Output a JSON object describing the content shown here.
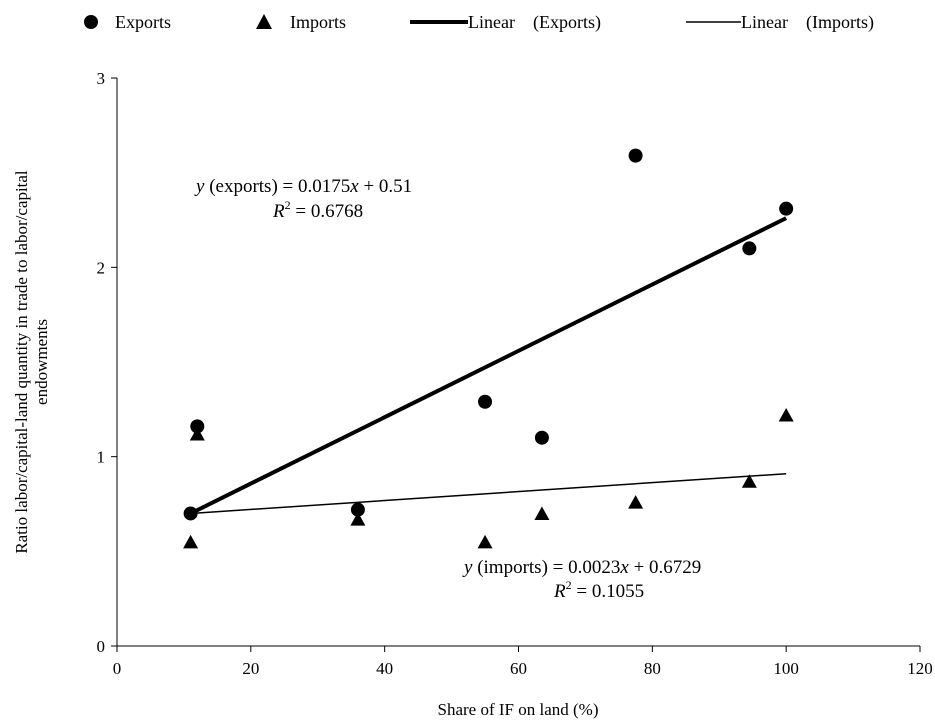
{
  "chart_data": {
    "type": "scatter",
    "xlabel": "Share of IF on land (%)",
    "ylabel_lines": [
      "Ratio labor/capital-land quantity in trade to labor/capital",
      "endowments"
    ],
    "xlim": [
      0,
      120
    ],
    "ylim": [
      0,
      3
    ],
    "x_ticks": [
      0,
      20,
      40,
      60,
      80,
      100,
      120
    ],
    "y_ticks": [
      0,
      1,
      2,
      3
    ],
    "grid": false,
    "legend_position": "top",
    "legend": [
      {
        "label": "Exports",
        "marker": "circle"
      },
      {
        "label": "Imports",
        "marker": "triangle"
      },
      {
        "label": "Linear    (Exports)",
        "marker": "thick-line"
      },
      {
        "label": "Linear    (Imports)",
        "marker": "thin-line"
      }
    ],
    "series": [
      {
        "name": "Exports",
        "marker": "circle",
        "points": [
          {
            "x": 11,
            "y": 0.7
          },
          {
            "x": 12,
            "y": 1.16
          },
          {
            "x": 36,
            "y": 0.72
          },
          {
            "x": 55,
            "y": 1.29
          },
          {
            "x": 63.5,
            "y": 1.1
          },
          {
            "x": 77.5,
            "y": 2.59
          },
          {
            "x": 94.5,
            "y": 2.1
          },
          {
            "x": 100,
            "y": 2.31
          }
        ]
      },
      {
        "name": "Imports",
        "marker": "triangle",
        "points": [
          {
            "x": 11,
            "y": 0.55
          },
          {
            "x": 12,
            "y": 1.12
          },
          {
            "x": 36,
            "y": 0.67
          },
          {
            "x": 55,
            "y": 0.55
          },
          {
            "x": 63.5,
            "y": 0.7
          },
          {
            "x": 77.5,
            "y": 0.76
          },
          {
            "x": 94.5,
            "y": 0.87
          },
          {
            "x": 100,
            "y": 1.22
          }
        ]
      }
    ],
    "trendlines": [
      {
        "name": "Linear    (Exports)",
        "style": "thick",
        "x": [
          11,
          100
        ],
        "y": [
          0.7,
          2.26
        ]
      },
      {
        "name": "Linear    (Imports)",
        "style": "thin",
        "x": [
          11,
          100
        ],
        "y": [
          0.7,
          0.91
        ]
      }
    ],
    "annotations": {
      "exports_eq": {
        "y_var": "y",
        "text": " (exports) = 0.0175",
        "x_var": "x",
        "tail": " + 0.51"
      },
      "exports_r2": {
        "r": "R",
        "sup": "2",
        "tail": " = 0.6768"
      },
      "imports_eq": {
        "y_var": "y",
        "text": " (imports) = 0.0023",
        "x_var": "x",
        "tail": " + 0.6729"
      },
      "imports_r2": {
        "r": "R",
        "sup": "2",
        "tail": " = 0.1055"
      }
    }
  }
}
